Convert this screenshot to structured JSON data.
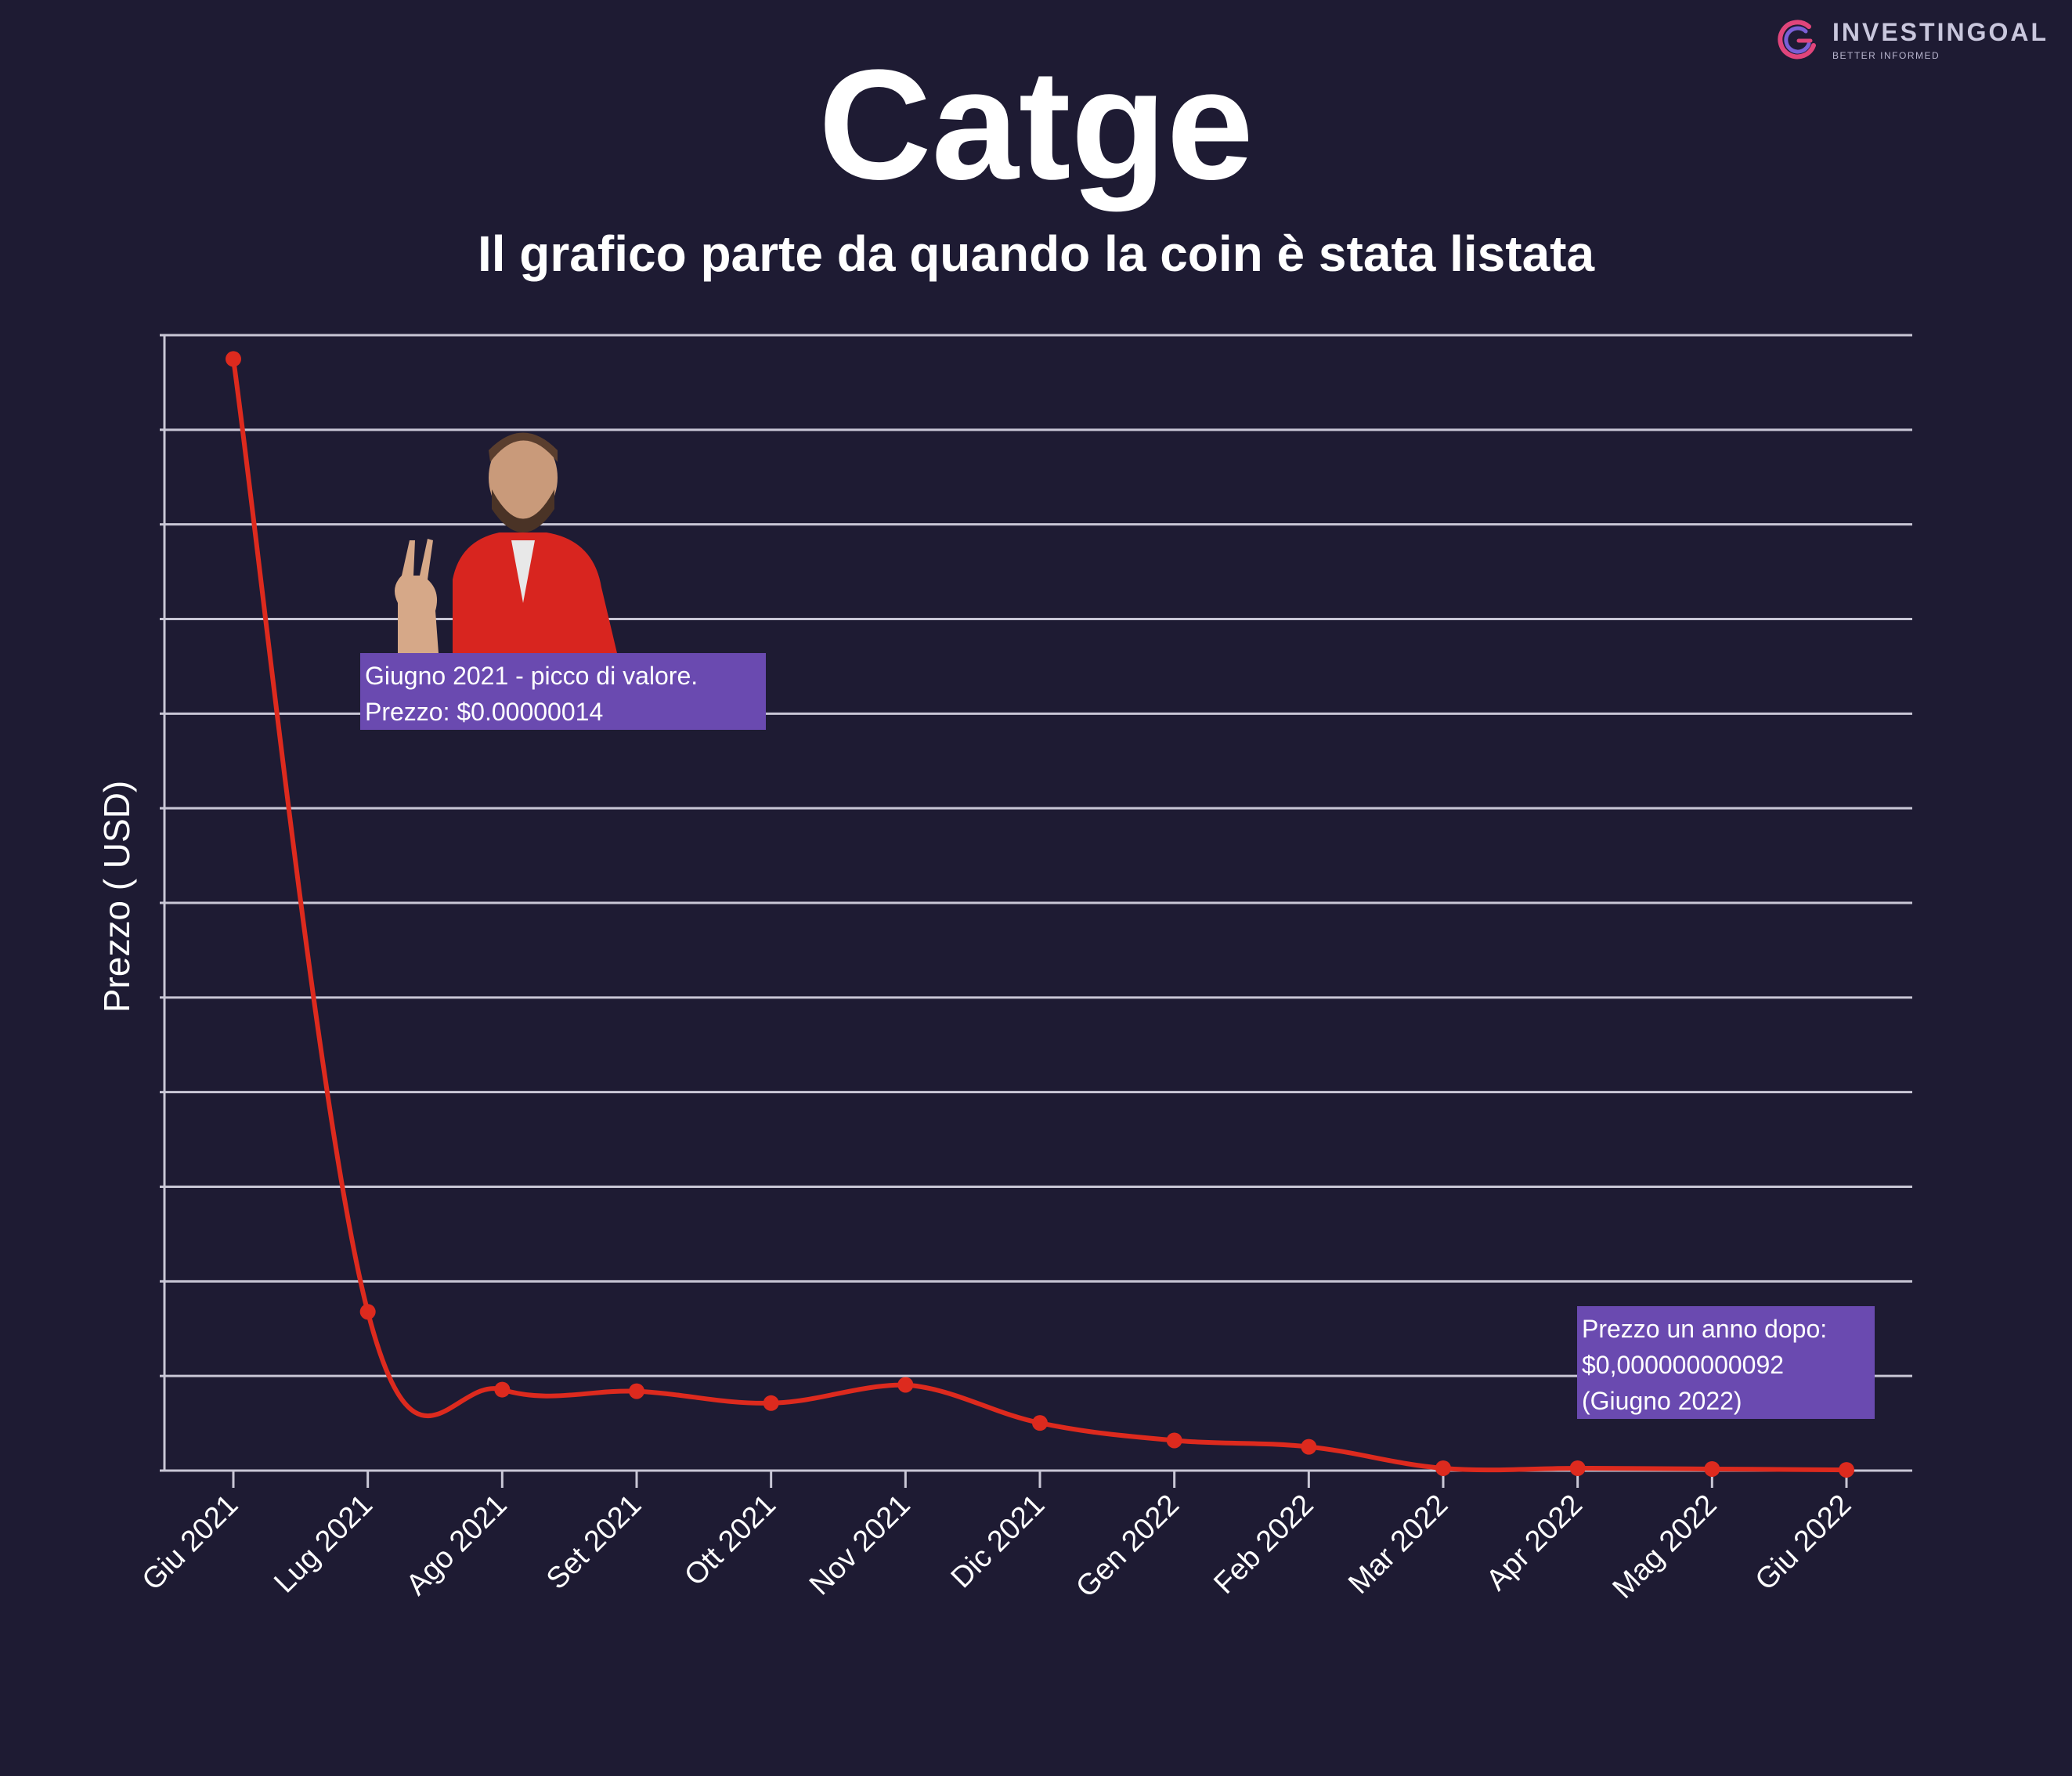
{
  "brand": {
    "name": "INVESTINGOAL",
    "tagline": "BETTER INFORMED",
    "icon": "investingoal-logo-icon"
  },
  "colors": {
    "background": "#1e1b33",
    "line": "#dd2a1e",
    "grid": "#c9c7d6",
    "annotation": "#6a4ab0"
  },
  "chart_data": {
    "type": "line",
    "title": "Catge",
    "subtitle": "Il grafico parte da quando la coin è stata listata",
    "xlabel": "",
    "ylabel": "Prezzo ( USD)",
    "categories": [
      "Giu 2021",
      "Lug 2021",
      "Ago 2021",
      "Set 2021",
      "Ott 2021",
      "Nov 2021",
      "Dic 2021",
      "Gen 2022",
      "Feb 2022",
      "Mar 2022",
      "Apr 2022",
      "Mag 2022",
      "Giu 2022"
    ],
    "series": [
      {
        "values": [
          1.4e-07,
          2e-08,
          1.02e-08,
          1e-08,
          8.5e-09,
          1.08e-08,
          6e-09,
          3.8e-09,
          3e-09,
          3e-10,
          3e-10,
          2e-10,
          9.2e-11
        ]
      }
    ],
    "ylim": [
      0,
      1.43e-07
    ],
    "y_tick_labels_shown": false,
    "grid": true,
    "annotations": [
      {
        "lines": [
          "Giugno 2021 - picco di valore.",
          "Prezzo: $0.00000014"
        ]
      },
      {
        "lines": [
          "Prezzo un anno dopo:",
          "$0,000000000092",
          "(Giugno 2022)"
        ]
      }
    ]
  }
}
